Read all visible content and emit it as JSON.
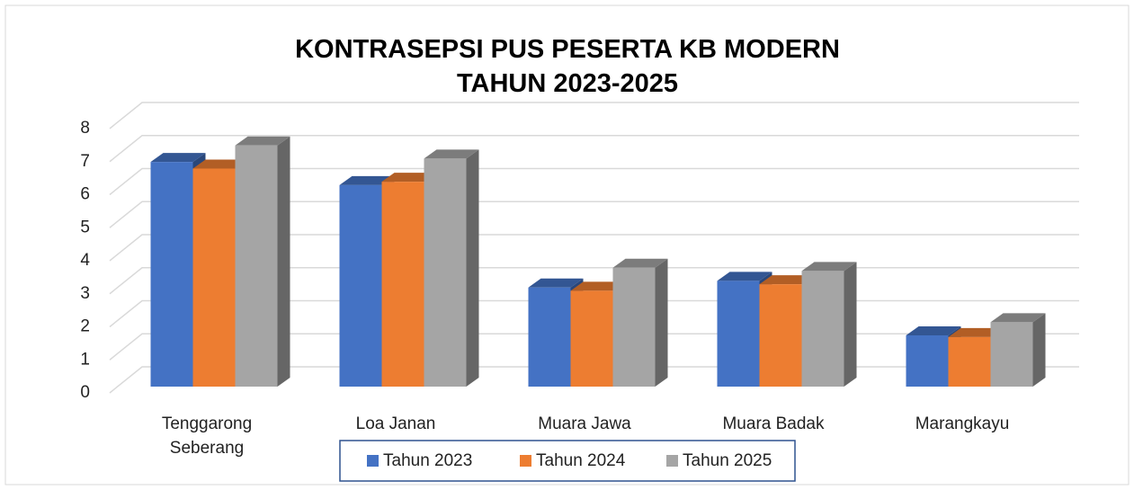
{
  "chart_data": {
    "type": "bar3d",
    "title": "KONTRASEPSI PUS PESERTA KB MODERN TAHUN 2023-2025",
    "categories": [
      "Tenggarong Seberang",
      "Loa Janan",
      "Muara Jawa",
      "Muara Badak",
      "Marangkayu"
    ],
    "series": [
      {
        "name": "Tahun 2023",
        "color": "#4472c4",
        "values": [
          6.8,
          6.1,
          3.0,
          3.2,
          1.55
        ]
      },
      {
        "name": "Tahun 2024",
        "color": "#ed7d31",
        "values": [
          6.6,
          6.2,
          2.9,
          3.1,
          1.5
        ]
      },
      {
        "name": "Tahun 2025",
        "color": "#a5a5a5",
        "values": [
          7.3,
          6.9,
          3.6,
          3.5,
          1.95
        ]
      }
    ],
    "ylim": [
      0,
      8
    ],
    "yticks": [
      0,
      1,
      2,
      3,
      4,
      5,
      6,
      7,
      8
    ],
    "grid": true,
    "legend": "bottom"
  }
}
